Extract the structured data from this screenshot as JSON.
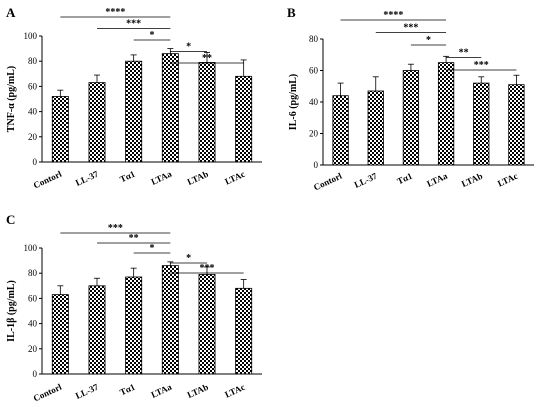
{
  "chart_data": [
    {
      "panel": "A",
      "type": "bar",
      "ylabel": "TNF-α (pg/mL)",
      "categories": [
        "Contorl",
        "LL-37",
        "Tα1",
        "LTAa",
        "LTAb",
        "LTAc"
      ],
      "values": [
        52,
        63,
        80,
        86,
        79,
        68
      ],
      "errors": [
        5,
        6,
        5,
        4,
        8,
        13
      ],
      "ylim": [
        0,
        100
      ],
      "yticks": [
        0,
        20,
        40,
        60,
        80,
        100
      ],
      "significance": [
        {
          "from": 0,
          "to": 3,
          "label": "****"
        },
        {
          "from": 1,
          "to": 3,
          "label": "***"
        },
        {
          "from": 2,
          "to": 3,
          "label": "*"
        },
        {
          "from": 3,
          "to": 4,
          "label": "*"
        },
        {
          "from": 3,
          "to": 5,
          "label": "**"
        }
      ]
    },
    {
      "panel": "B",
      "type": "bar",
      "ylabel": "IL-6 (pg/mL)",
      "categories": [
        "Contorl",
        "LL-37",
        "Tα1",
        "LTAa",
        "LTAb",
        "LTAc"
      ],
      "values": [
        44,
        47,
        60,
        65,
        52,
        51
      ],
      "errors": [
        8,
        9,
        4,
        4,
        4,
        6
      ],
      "ylim": [
        0,
        80
      ],
      "yticks": [
        0,
        20,
        40,
        60,
        80
      ],
      "significance": [
        {
          "from": 0,
          "to": 3,
          "label": "****"
        },
        {
          "from": 1,
          "to": 3,
          "label": "***"
        },
        {
          "from": 2,
          "to": 3,
          "label": "*"
        },
        {
          "from": 3,
          "to": 4,
          "label": "**"
        },
        {
          "from": 3,
          "to": 5,
          "label": "***"
        }
      ]
    },
    {
      "panel": "C",
      "type": "bar",
      "ylabel": "IL-1β (pg/mL)",
      "categories": [
        "Contorl",
        "LL-37",
        "Tα1",
        "LTAa",
        "LTAb",
        "LTAc"
      ],
      "values": [
        63,
        70,
        77,
        86,
        79,
        68
      ],
      "errors": [
        7,
        6,
        7,
        3,
        6,
        7
      ],
      "ylim": [
        0,
        100
      ],
      "yticks": [
        0,
        20,
        40,
        60,
        80,
        100
      ],
      "significance": [
        {
          "from": 0,
          "to": 3,
          "label": "***"
        },
        {
          "from": 1,
          "to": 3,
          "label": "**"
        },
        {
          "from": 2,
          "to": 3,
          "label": "*"
        },
        {
          "from": 3,
          "to": 4,
          "label": "*"
        },
        {
          "from": 3,
          "to": 5,
          "label": "***"
        }
      ]
    }
  ]
}
